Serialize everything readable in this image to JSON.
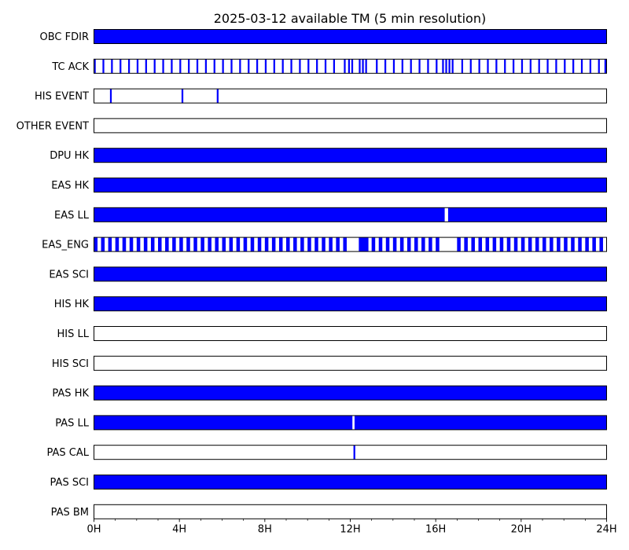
{
  "chart_data": {
    "type": "timeline",
    "title": "2025-03-12 available TM (5 min resolution)",
    "x_unit": "hours",
    "xlim": [
      0,
      24
    ],
    "x_ticks": [
      0,
      4,
      8,
      12,
      16,
      20,
      24
    ],
    "x_tick_labels": [
      "0H",
      "4H",
      "8H",
      "12H",
      "16H",
      "20H",
      "24H"
    ],
    "minor_tick_step_hours": 1,
    "fill_color": "#0000ff",
    "empty_color": "#ffffff",
    "border_color": "#000000",
    "rows": [
      {
        "label": "OBC FDIR",
        "intervals": [
          [
            0,
            24
          ]
        ]
      },
      {
        "label": "TC ACK",
        "intervals": [
          [
            0.0,
            0.083
          ],
          [
            0.4,
            0.483
          ],
          [
            0.8,
            0.883
          ],
          [
            1.2,
            1.283
          ],
          [
            1.6,
            1.683
          ],
          [
            2.0,
            2.083
          ],
          [
            2.4,
            2.483
          ],
          [
            2.8,
            2.883
          ],
          [
            3.2,
            3.283
          ],
          [
            3.6,
            3.683
          ],
          [
            4.0,
            4.083
          ],
          [
            4.4,
            4.483
          ],
          [
            4.8,
            4.883
          ],
          [
            5.2,
            5.283
          ],
          [
            5.6,
            5.683
          ],
          [
            6.0,
            6.083
          ],
          [
            6.4,
            6.483
          ],
          [
            6.8,
            6.883
          ],
          [
            7.2,
            7.283
          ],
          [
            7.6,
            7.683
          ],
          [
            8.0,
            8.083
          ],
          [
            8.4,
            8.483
          ],
          [
            8.8,
            8.883
          ],
          [
            9.2,
            9.283
          ],
          [
            9.6,
            9.683
          ],
          [
            10.0,
            10.083
          ],
          [
            10.4,
            10.483
          ],
          [
            10.8,
            10.883
          ],
          [
            11.2,
            11.283
          ],
          [
            11.7,
            11.783
          ],
          [
            11.9,
            11.983
          ],
          [
            12.05,
            12.133
          ],
          [
            12.4,
            12.483
          ],
          [
            12.55,
            12.633
          ],
          [
            12.7,
            12.783
          ],
          [
            13.2,
            13.283
          ],
          [
            13.6,
            13.683
          ],
          [
            14.0,
            14.083
          ],
          [
            14.4,
            14.483
          ],
          [
            14.8,
            14.883
          ],
          [
            15.2,
            15.283
          ],
          [
            15.6,
            15.683
          ],
          [
            16.0,
            16.083
          ],
          [
            16.3,
            16.383
          ],
          [
            16.45,
            16.533
          ],
          [
            16.6,
            16.683
          ],
          [
            16.75,
            16.833
          ],
          [
            17.2,
            17.283
          ],
          [
            17.6,
            17.683
          ],
          [
            18.0,
            18.083
          ],
          [
            18.4,
            18.483
          ],
          [
            18.8,
            18.883
          ],
          [
            19.2,
            19.283
          ],
          [
            19.6,
            19.683
          ],
          [
            20.0,
            20.083
          ],
          [
            20.4,
            20.483
          ],
          [
            20.8,
            20.883
          ],
          [
            21.2,
            21.283
          ],
          [
            21.6,
            21.683
          ],
          [
            22.0,
            22.083
          ],
          [
            22.4,
            22.483
          ],
          [
            22.8,
            22.883
          ],
          [
            23.2,
            23.283
          ],
          [
            23.6,
            23.683
          ],
          [
            23.9,
            24.0
          ]
        ]
      },
      {
        "label": "HIS EVENT",
        "intervals": [
          [
            0.75,
            0.833
          ],
          [
            4.1,
            4.183
          ],
          [
            5.75,
            5.833
          ]
        ]
      },
      {
        "label": "OTHER EVENT",
        "intervals": []
      },
      {
        "label": "DPU HK",
        "intervals": [
          [
            0,
            24
          ]
        ]
      },
      {
        "label": "EAS HK",
        "intervals": [
          [
            0,
            24
          ]
        ]
      },
      {
        "label": "EAS LL",
        "intervals": [
          [
            0,
            16.42
          ],
          [
            16.58,
            24
          ]
        ]
      },
      {
        "label": "EAS_ENG",
        "intervals": [
          [
            0.0,
            0.167
          ],
          [
            0.333,
            0.5
          ],
          [
            0.667,
            0.833
          ],
          [
            1.0,
            1.167
          ],
          [
            1.333,
            1.5
          ],
          [
            1.667,
            1.833
          ],
          [
            2.0,
            2.167
          ],
          [
            2.333,
            2.5
          ],
          [
            2.667,
            2.833
          ],
          [
            3.0,
            3.167
          ],
          [
            3.333,
            3.5
          ],
          [
            3.667,
            3.833
          ],
          [
            4.0,
            4.167
          ],
          [
            4.333,
            4.5
          ],
          [
            4.667,
            4.833
          ],
          [
            5.0,
            5.167
          ],
          [
            5.333,
            5.5
          ],
          [
            5.667,
            5.833
          ],
          [
            6.0,
            6.167
          ],
          [
            6.333,
            6.5
          ],
          [
            6.667,
            6.833
          ],
          [
            7.0,
            7.167
          ],
          [
            7.333,
            7.5
          ],
          [
            7.667,
            7.833
          ],
          [
            8.0,
            8.167
          ],
          [
            8.333,
            8.5
          ],
          [
            8.667,
            8.833
          ],
          [
            9.0,
            9.167
          ],
          [
            9.333,
            9.5
          ],
          [
            9.667,
            9.833
          ],
          [
            10.0,
            10.167
          ],
          [
            10.333,
            10.5
          ],
          [
            10.667,
            10.833
          ],
          [
            11.0,
            11.167
          ],
          [
            11.333,
            11.5
          ],
          [
            11.667,
            11.833
          ],
          [
            12.4,
            12.85
          ],
          [
            13.0,
            13.167
          ],
          [
            13.333,
            13.5
          ],
          [
            13.667,
            13.833
          ],
          [
            14.0,
            14.167
          ],
          [
            14.333,
            14.5
          ],
          [
            14.667,
            14.833
          ],
          [
            15.0,
            15.167
          ],
          [
            15.333,
            15.5
          ],
          [
            15.667,
            15.833
          ],
          [
            16.0,
            16.167
          ],
          [
            17.0,
            17.167
          ],
          [
            17.333,
            17.5
          ],
          [
            17.667,
            17.833
          ],
          [
            18.0,
            18.167
          ],
          [
            18.333,
            18.5
          ],
          [
            18.667,
            18.833
          ],
          [
            19.0,
            19.167
          ],
          [
            19.333,
            19.5
          ],
          [
            19.667,
            19.833
          ],
          [
            20.0,
            20.167
          ],
          [
            20.333,
            20.5
          ],
          [
            20.667,
            20.833
          ],
          [
            21.0,
            21.167
          ],
          [
            21.333,
            21.5
          ],
          [
            21.667,
            21.833
          ],
          [
            22.0,
            22.167
          ],
          [
            22.333,
            22.5
          ],
          [
            22.667,
            22.833
          ],
          [
            23.0,
            23.167
          ],
          [
            23.333,
            23.5
          ],
          [
            23.667,
            23.833
          ]
        ]
      },
      {
        "label": "EAS SCI",
        "intervals": [
          [
            0,
            24
          ]
        ]
      },
      {
        "label": "HIS HK",
        "intervals": [
          [
            0,
            24
          ]
        ]
      },
      {
        "label": "HIS LL",
        "intervals": []
      },
      {
        "label": "HIS SCI",
        "intervals": []
      },
      {
        "label": "PAS HK",
        "intervals": [
          [
            0,
            24
          ]
        ]
      },
      {
        "label": "PAS LL",
        "intervals": [
          [
            0,
            12.1
          ],
          [
            12.2,
            24
          ]
        ]
      },
      {
        "label": "PAS CAL",
        "intervals": [
          [
            12.15,
            12.233
          ]
        ]
      },
      {
        "label": "PAS SCI",
        "intervals": [
          [
            0,
            24
          ]
        ]
      },
      {
        "label": "PAS BM",
        "intervals": []
      }
    ]
  }
}
